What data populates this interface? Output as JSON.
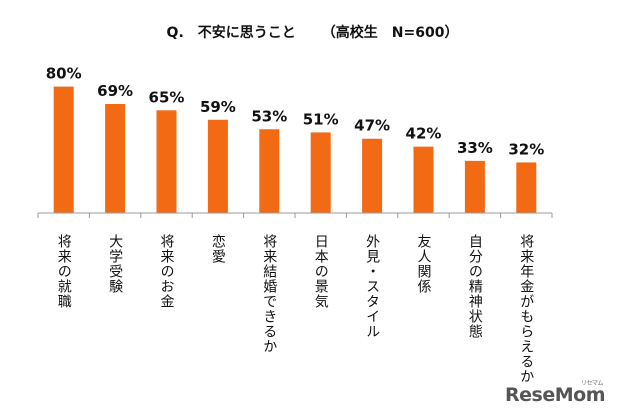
{
  "header": {
    "question": "Q.　不安に思うこと",
    "subtitle": "（高校生　N=600）"
  },
  "chart_data": {
    "type": "bar",
    "title": "Q.　不安に思うこと　（高校生　N=600）",
    "categories": [
      "将来の就職",
      "大学受験",
      "将来のお金",
      "恋愛",
      "将来結婚できるか",
      "日本の景気",
      "外見・スタイル",
      "友人関係",
      "自分の精神状態",
      "将来年金がもらえるか"
    ],
    "values": [
      80,
      69,
      65,
      59,
      53,
      51,
      47,
      42,
      33,
      32
    ],
    "labels": [
      "80%",
      "69%",
      "65%",
      "59%",
      "53%",
      "51%",
      "47%",
      "42%",
      "33%",
      "32%"
    ],
    "unit": "%",
    "ylim": [
      0,
      100
    ],
    "color": "#F26A14",
    "xlabel": "",
    "ylabel": ""
  },
  "logo": {
    "text": "ReseMom",
    "kana": "リセマム"
  }
}
